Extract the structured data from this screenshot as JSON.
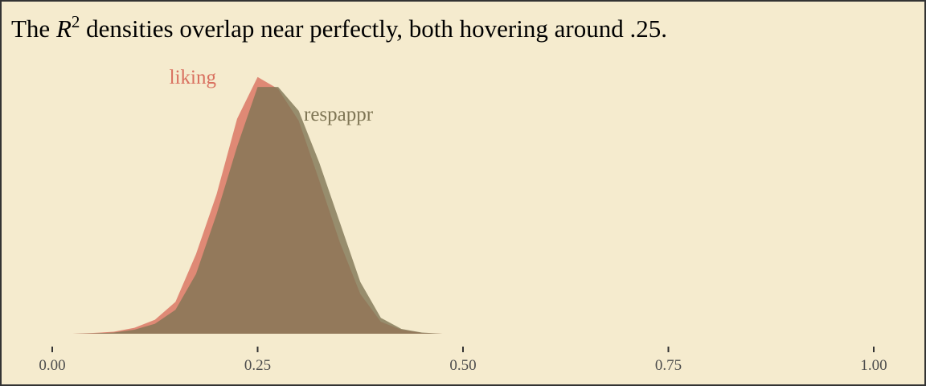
{
  "chart_data": {
    "type": "density",
    "title": {
      "before": "The ",
      "symbol": "R",
      "superscript": "2",
      "after": " densities overlap near perfectly, both hovering around .25."
    },
    "x": [
      0.025,
      0.05,
      0.075,
      0.1,
      0.125,
      0.15,
      0.175,
      0.2,
      0.225,
      0.25,
      0.275,
      0.3,
      0.325,
      0.35,
      0.375,
      0.4,
      0.425,
      0.45,
      0.475
    ],
    "series": [
      {
        "name": "liking",
        "color": "#d9705f",
        "values": [
          0,
          0.02,
          0.05,
          0.15,
          0.35,
          0.8,
          2.0,
          3.5,
          5.4,
          6.45,
          6.15,
          5.35,
          3.85,
          2.3,
          1.0,
          0.3,
          0.1,
          0.02,
          0
        ]
      },
      {
        "name": "respappr",
        "color": "#7f7655",
        "values": [
          0,
          0.01,
          0.03,
          0.1,
          0.25,
          0.6,
          1.5,
          3.0,
          4.7,
          6.2,
          6.2,
          5.6,
          4.3,
          2.8,
          1.3,
          0.4,
          0.12,
          0.03,
          0
        ]
      }
    ],
    "xlim": [
      0,
      1
    ],
    "xticks": [
      {
        "value": 0,
        "label": "0.00"
      },
      {
        "value": 0.25,
        "label": "0.25"
      },
      {
        "value": 0.5,
        "label": "0.50"
      },
      {
        "value": 0.75,
        "label": "0.75"
      },
      {
        "value": 1,
        "label": "1.00"
      }
    ],
    "ylim": [
      0,
      7
    ]
  }
}
